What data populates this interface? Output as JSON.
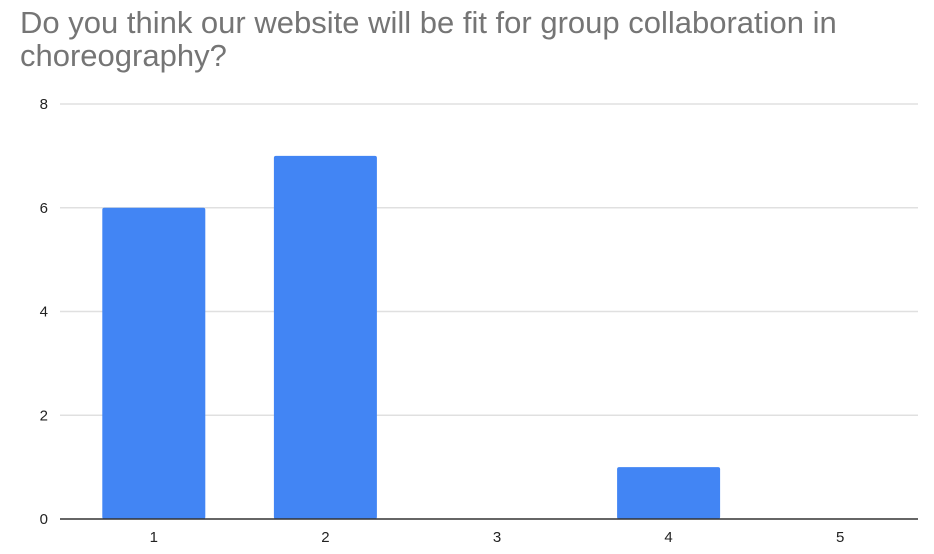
{
  "chart_data": {
    "type": "bar",
    "title": "Do you think our website will be fit for group collaboration in choreography?",
    "categories": [
      "1",
      "2",
      "3",
      "4",
      "5"
    ],
    "values": [
      6,
      7,
      0,
      1,
      0
    ],
    "ylim": [
      0,
      8
    ],
    "yticks": [
      "0",
      "2",
      "4",
      "6",
      "8"
    ],
    "xlabel": "",
    "ylabel": "",
    "grid": true,
    "legend": "none",
    "colors": {
      "bar": "#4285f4",
      "grid": "#e0e0e0",
      "axis": "#333333"
    }
  }
}
